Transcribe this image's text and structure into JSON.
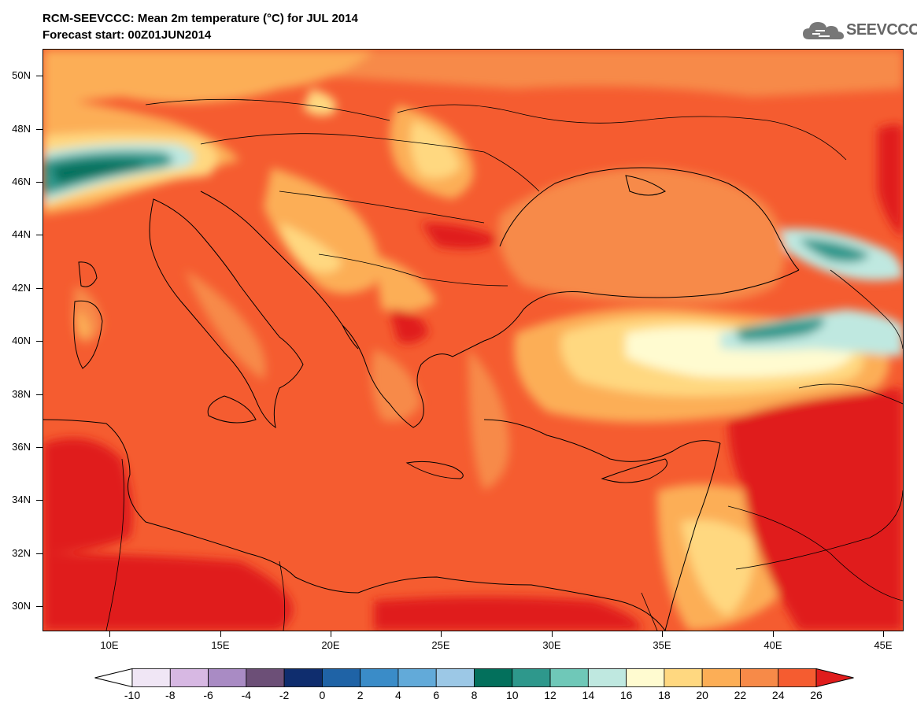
{
  "header": {
    "title": "RCM-SEEVCCC: Mean 2m temperature (°C) for JUL 2014",
    "subtitle": "Forecast start: 00Z01JUN2014"
  },
  "logo": {
    "text": "SEEVCCC",
    "icon": "cloud-icon"
  },
  "map": {
    "lat_labels": [
      "50N",
      "48N",
      "46N",
      "44N",
      "42N",
      "40N",
      "38N",
      "36N",
      "34N",
      "32N",
      "30N"
    ],
    "lat_values": [
      50,
      48,
      46,
      44,
      42,
      40,
      38,
      36,
      34,
      32,
      30
    ],
    "lon_labels": [
      "10E",
      "15E",
      "20E",
      "25E",
      "30E",
      "35E",
      "40E",
      "45E"
    ],
    "lon_values": [
      10,
      15,
      20,
      25,
      30,
      35,
      40,
      45
    ],
    "lon_range": [
      7,
      46
    ],
    "lat_range": [
      29,
      51
    ]
  },
  "colorbar": {
    "labels": [
      "-10",
      "-8",
      "-6",
      "-4",
      "-2",
      "0",
      "2",
      "4",
      "6",
      "8",
      "10",
      "12",
      "14",
      "16",
      "18",
      "20",
      "22",
      "24",
      "26"
    ],
    "colors": [
      "#f0e6f5",
      "#d7b8e3",
      "#a98bc4",
      "#6c4f77",
      "#0f2d6e",
      "#1f63a6",
      "#3a8cc8",
      "#62aad9",
      "#9cc8e6",
      "#03705c",
      "#2e988c",
      "#6fc8b8",
      "#bfe8e0",
      "#fffbd0",
      "#ffd880",
      "#fcae56",
      "#f78a48",
      "#f55c30"
    ],
    "under_color": "#ffffff",
    "over_color": "#e01c1c"
  }
}
